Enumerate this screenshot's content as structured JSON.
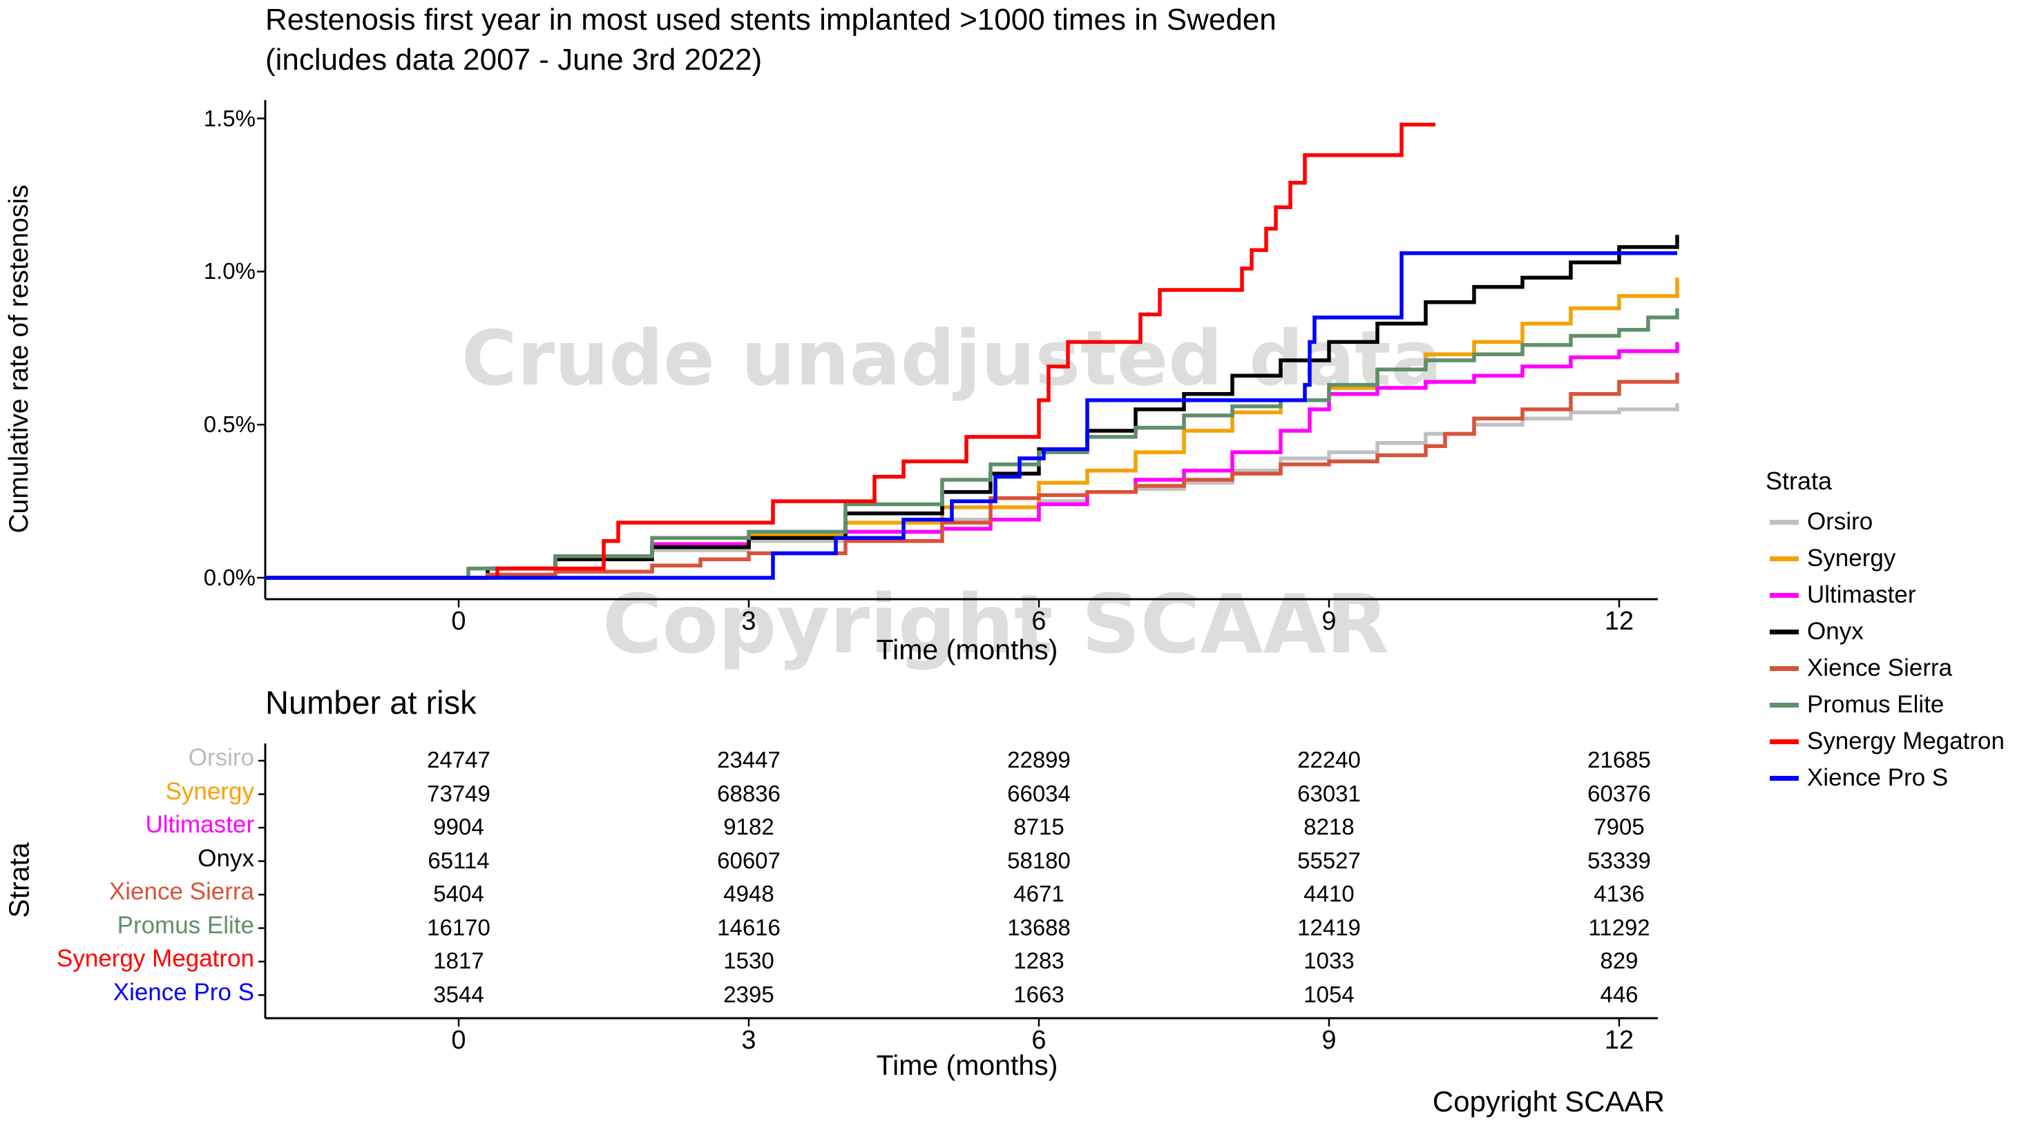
{
  "title": "Restenosis first year in most used stents implanted >1000 times in Sweden",
  "subtitle": "(includes data 2007 - June 3rd 2022)",
  "watermark": {
    "line1": "Crude unadjusted data",
    "line2": "Copyright SCAAR"
  },
  "footer": {
    "copyright": "Copyright SCAAR"
  },
  "legend": {
    "title": "Strata",
    "items": [
      {
        "label": "Orsiro",
        "color": "#c0c0c0"
      },
      {
        "label": "Synergy",
        "color": "#f5a200"
      },
      {
        "label": "Ultimaster",
        "color": "#ff00ff"
      },
      {
        "label": "Onyx",
        "color": "#000000"
      },
      {
        "label": "Xience Sierra",
        "color": "#d9523a"
      },
      {
        "label": "Promus Elite",
        "color": "#5f8f6a"
      },
      {
        "label": "Synergy Megatron",
        "color": "#ff0000"
      },
      {
        "label": "Xience Pro S",
        "color": "#0000ff"
      }
    ]
  },
  "chart_data": [
    {
      "type": "line",
      "step": true,
      "title": "Restenosis first year in most used stents implanted >1000 times in Sweden",
      "subtitle": "(includes data 2007 - June 3rd 2022)",
      "xlabel": "Time (months)",
      "ylabel": "Cumulative rate of restenosis",
      "xlim": [
        -2,
        12.4
      ],
      "ylim": [
        -0.0007,
        0.0156
      ],
      "xticks": [
        0,
        3,
        6,
        9,
        12
      ],
      "xtick_labels": [
        "0",
        "3",
        "6",
        "9",
        "12"
      ],
      "yticks": [
        0,
        0.005,
        0.01,
        0.015
      ],
      "ytick_labels": [
        "0.0%",
        "0.5%",
        "1.0%",
        "1.5%"
      ],
      "grid": false,
      "legend_position": "right",
      "series": [
        {
          "name": "Orsiro",
          "color": "#c0c0c0",
          "points": [
            [
              -2,
              0
            ],
            [
              0,
              0
            ],
            [
              0.3,
              0.0003
            ],
            [
              1,
              0.0006
            ],
            [
              2,
              0.0009
            ],
            [
              3,
              0.0012
            ],
            [
              4,
              0.0015
            ],
            [
              5,
              0.0019
            ],
            [
              6,
              0.0025
            ],
            [
              6.5,
              0.0028
            ],
            [
              7,
              0.0029
            ],
            [
              7.5,
              0.0031
            ],
            [
              8,
              0.0035
            ],
            [
              8.5,
              0.0039
            ],
            [
              9,
              0.0041
            ],
            [
              9.5,
              0.0044
            ],
            [
              10,
              0.0047
            ],
            [
              10.5,
              0.005
            ],
            [
              11,
              0.0052
            ],
            [
              11.5,
              0.0054
            ],
            [
              12,
              0.0055
            ],
            [
              12.6,
              0.0057
            ]
          ]
        },
        {
          "name": "Synergy",
          "color": "#f5a200",
          "points": [
            [
              -2,
              0
            ],
            [
              0,
              0
            ],
            [
              0.3,
              0.0003
            ],
            [
              1,
              0.0007
            ],
            [
              2,
              0.001
            ],
            [
              3,
              0.0014
            ],
            [
              4,
              0.0018
            ],
            [
              5,
              0.0023
            ],
            [
              6,
              0.0031
            ],
            [
              6.5,
              0.0035
            ],
            [
              7,
              0.0041
            ],
            [
              7.5,
              0.0048
            ],
            [
              8,
              0.0054
            ],
            [
              8.5,
              0.0058
            ],
            [
              9,
              0.0062
            ],
            [
              9.5,
              0.0068
            ],
            [
              10,
              0.0073
            ],
            [
              10.5,
              0.0077
            ],
            [
              11,
              0.0083
            ],
            [
              11.5,
              0.0088
            ],
            [
              12,
              0.0092
            ],
            [
              12.6,
              0.0098
            ]
          ]
        },
        {
          "name": "Ultimaster",
          "color": "#ff00ff",
          "points": [
            [
              -2,
              0
            ],
            [
              0,
              0
            ],
            [
              0.3,
              0.0003
            ],
            [
              1,
              0.0007
            ],
            [
              2,
              0.0011
            ],
            [
              3,
              0.0013
            ],
            [
              4,
              0.0015
            ],
            [
              5,
              0.0016
            ],
            [
              5.5,
              0.0019
            ],
            [
              6,
              0.0024
            ],
            [
              6.5,
              0.0028
            ],
            [
              7,
              0.0032
            ],
            [
              7.5,
              0.0035
            ],
            [
              8,
              0.0041
            ],
            [
              8.5,
              0.0048
            ],
            [
              8.8,
              0.0055
            ],
            [
              9,
              0.006
            ],
            [
              9.5,
              0.0062
            ],
            [
              10,
              0.0064
            ],
            [
              10.5,
              0.0066
            ],
            [
              11,
              0.0069
            ],
            [
              11.5,
              0.0072
            ],
            [
              12,
              0.0074
            ],
            [
              12.6,
              0.0077
            ]
          ]
        },
        {
          "name": "Onyx",
          "color": "#000000",
          "points": [
            [
              -2,
              0
            ],
            [
              0,
              0
            ],
            [
              0.3,
              0.0003
            ],
            [
              1,
              0.0006
            ],
            [
              2,
              0.001
            ],
            [
              3,
              0.0013
            ],
            [
              4,
              0.0021
            ],
            [
              5,
              0.0028
            ],
            [
              5.5,
              0.0034
            ],
            [
              6,
              0.0042
            ],
            [
              6.5,
              0.0048
            ],
            [
              7,
              0.0055
            ],
            [
              7.5,
              0.006
            ],
            [
              8,
              0.0066
            ],
            [
              8.5,
              0.0071
            ],
            [
              9,
              0.0077
            ],
            [
              9.5,
              0.0083
            ],
            [
              10,
              0.009
            ],
            [
              10.5,
              0.0095
            ],
            [
              11,
              0.0098
            ],
            [
              11.5,
              0.0103
            ],
            [
              12,
              0.0108
            ],
            [
              12.6,
              0.0112
            ]
          ]
        },
        {
          "name": "Xience Sierra",
          "color": "#d9523a",
          "points": [
            [
              -2,
              0
            ],
            [
              0,
              0
            ],
            [
              0.3,
              0.0001
            ],
            [
              1,
              0.0002
            ],
            [
              2,
              0.0004
            ],
            [
              2.5,
              0.0006
            ],
            [
              3,
              0.0008
            ],
            [
              4,
              0.0012
            ],
            [
              5,
              0.0018
            ],
            [
              5.5,
              0.0026
            ],
            [
              6,
              0.0027
            ],
            [
              6.5,
              0.0028
            ],
            [
              7,
              0.003
            ],
            [
              7.5,
              0.0032
            ],
            [
              8,
              0.0034
            ],
            [
              8.5,
              0.0037
            ],
            [
              9,
              0.0038
            ],
            [
              9.5,
              0.004
            ],
            [
              10,
              0.0043
            ],
            [
              10.2,
              0.0047
            ],
            [
              10.5,
              0.0052
            ],
            [
              11,
              0.0055
            ],
            [
              11.5,
              0.006
            ],
            [
              12,
              0.0064
            ],
            [
              12.6,
              0.0067
            ]
          ]
        },
        {
          "name": "Promus Elite",
          "color": "#5f8f6a",
          "points": [
            [
              -2,
              0
            ],
            [
              0,
              0
            ],
            [
              0.1,
              0.0003
            ],
            [
              1,
              0.0007
            ],
            [
              2,
              0.0013
            ],
            [
              3,
              0.0015
            ],
            [
              4,
              0.0024
            ],
            [
              5,
              0.0032
            ],
            [
              5.5,
              0.0037
            ],
            [
              6,
              0.0041
            ],
            [
              6.5,
              0.0046
            ],
            [
              7,
              0.0049
            ],
            [
              7.5,
              0.0053
            ],
            [
              8,
              0.0056
            ],
            [
              8.5,
              0.0058
            ],
            [
              9,
              0.0063
            ],
            [
              9.5,
              0.0068
            ],
            [
              10,
              0.0071
            ],
            [
              10.5,
              0.0073
            ],
            [
              11,
              0.0076
            ],
            [
              11.5,
              0.0079
            ],
            [
              12,
              0.0081
            ],
            [
              12.3,
              0.0085
            ],
            [
              12.6,
              0.0088
            ]
          ]
        },
        {
          "name": "Synergy Megatron",
          "color": "#ff0000",
          "points": [
            [
              -2,
              0
            ],
            [
              0,
              0
            ],
            [
              0.4,
              0.0003
            ],
            [
              1.5,
              0.0012
            ],
            [
              1.65,
              0.0018
            ],
            [
              3,
              0.0018
            ],
            [
              3.25,
              0.0025
            ],
            [
              4.3,
              0.0033
            ],
            [
              4.6,
              0.0038
            ],
            [
              5.25,
              0.0046
            ],
            [
              6,
              0.0058
            ],
            [
              6.1,
              0.0069
            ],
            [
              6.3,
              0.0077
            ],
            [
              7,
              0.0077
            ],
            [
              7.05,
              0.0086
            ],
            [
              7.25,
              0.0094
            ],
            [
              8.1,
              0.0101
            ],
            [
              8.2,
              0.0107
            ],
            [
              8.35,
              0.0114
            ],
            [
              8.45,
              0.0121
            ],
            [
              8.6,
              0.0129
            ],
            [
              8.75,
              0.0138
            ],
            [
              9.7,
              0.0138
            ],
            [
              9.75,
              0.0148
            ],
            [
              10.1,
              0.0148
            ]
          ]
        },
        {
          "name": "Xience Pro S",
          "color": "#0000ff",
          "points": [
            [
              -2,
              0
            ],
            [
              0,
              0
            ],
            [
              3.25,
              0.0008
            ],
            [
              3.9,
              0.0013
            ],
            [
              4.6,
              0.0019
            ],
            [
              5.1,
              0.0025
            ],
            [
              5.55,
              0.0033
            ],
            [
              5.8,
              0.0039
            ],
            [
              6.05,
              0.0042
            ],
            [
              6.5,
              0.0058
            ],
            [
              8.7,
              0.0058
            ],
            [
              8.75,
              0.0063
            ],
            [
              8.8,
              0.0077
            ],
            [
              8.85,
              0.0085
            ],
            [
              9.7,
              0.0085
            ],
            [
              9.75,
              0.0106
            ],
            [
              12.6,
              0.0106
            ]
          ]
        }
      ]
    },
    {
      "type": "table",
      "title": "Number at risk",
      "ylabel": "Strata",
      "xlabel": "Time (months)",
      "columns": [
        "0",
        "3",
        "6",
        "9",
        "12"
      ],
      "rows": [
        {
          "name": "Orsiro",
          "color": "#bcbcbc",
          "values": [
            "24747",
            "23447",
            "22899",
            "22240",
            "21685"
          ]
        },
        {
          "name": "Synergy",
          "color": "#f5a200",
          "values": [
            "73749",
            "68836",
            "66034",
            "63031",
            "60376"
          ]
        },
        {
          "name": "Ultimaster",
          "color": "#ff00ff",
          "values": [
            "9904",
            "9182",
            "8715",
            "8218",
            "7905"
          ]
        },
        {
          "name": "Onyx",
          "color": "#000000",
          "values": [
            "65114",
            "60607",
            "58180",
            "55527",
            "53339"
          ]
        },
        {
          "name": "Xience Sierra",
          "color": "#d9523a",
          "values": [
            "5404",
            "4948",
            "4671",
            "4410",
            "4136"
          ]
        },
        {
          "name": "Promus Elite",
          "color": "#5f8f6a",
          "values": [
            "16170",
            "14616",
            "13688",
            "12419",
            "11292"
          ]
        },
        {
          "name": "Synergy Megatron",
          "color": "#ff0000",
          "values": [
            "1817",
            "1530",
            "1283",
            "1033",
            "829"
          ]
        },
        {
          "name": "Xience Pro S",
          "color": "#0000ff",
          "values": [
            "3544",
            "2395",
            "1663",
            "1054",
            "446"
          ]
        }
      ]
    }
  ]
}
